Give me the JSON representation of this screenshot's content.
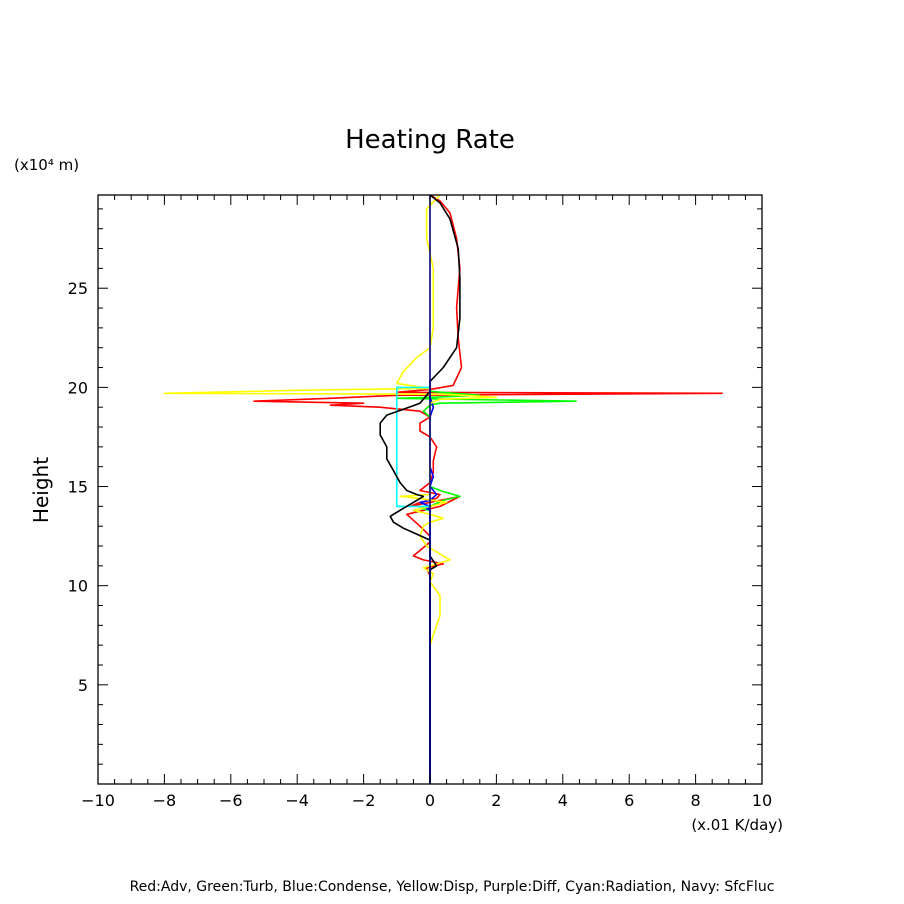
{
  "chart_data": {
    "type": "line",
    "title": "Heating Rate",
    "ylabel": "Height",
    "y_unit": "(x10⁴ m)",
    "x_unit": "(x.01 K/day)",
    "xlim": [
      -10,
      10
    ],
    "ylim": [
      0,
      29.7
    ],
    "x_ticks": [
      "−10",
      "−8",
      "−6",
      "−4",
      "−2",
      "0",
      "2",
      "4",
      "6",
      "8",
      "10"
    ],
    "y_ticks": [
      "5",
      "10",
      "15",
      "20",
      "25"
    ],
    "grid": false,
    "caption": "Red:Adv, Green:Turb, Blue:Condense, Yellow:Disp, Purple:Diff, Cyan:Radiation, Navy: SfcFluc",
    "colors": {
      "Adv": "#ff0000",
      "Turb": "#00ff00",
      "Condense": "#0000ff",
      "Disp": "#ffff00",
      "Diff": "#a020f0",
      "Radiation": "#00ffff",
      "SfcFluc": "#000080",
      "Total": "#000000"
    },
    "series": [
      {
        "key": "Adv",
        "color": "#ff0000",
        "points": [
          [
            0,
            29.7
          ],
          [
            0.3,
            29.4
          ],
          [
            0.6,
            28.8
          ],
          [
            0.8,
            27.5
          ],
          [
            0.9,
            26
          ],
          [
            0.85,
            25
          ],
          [
            0.8,
            24
          ],
          [
            0.85,
            22.5
          ],
          [
            0.95,
            21
          ],
          [
            0.7,
            20.1
          ],
          [
            0,
            19.9
          ],
          [
            -1,
            19.75
          ],
          [
            8.8,
            19.7
          ],
          [
            -1,
            19.6
          ],
          [
            -3,
            19.45
          ],
          [
            -5.3,
            19.3
          ],
          [
            -2,
            19.2
          ],
          [
            -3,
            19.1
          ],
          [
            -1.5,
            19
          ],
          [
            -0.3,
            18.8
          ],
          [
            0,
            18.5
          ],
          [
            -0.3,
            18.2
          ],
          [
            -0.3,
            17.8
          ],
          [
            0,
            17.5
          ],
          [
            0.2,
            17
          ],
          [
            0.1,
            16.3
          ],
          [
            0.1,
            15.7
          ],
          [
            0,
            15.2
          ],
          [
            -0.3,
            14.8
          ],
          [
            0.3,
            14.6
          ],
          [
            0.2,
            14.4
          ],
          [
            -0.3,
            14.2
          ],
          [
            -0.6,
            14
          ],
          [
            0.9,
            14.5
          ],
          [
            0.3,
            14
          ],
          [
            -0.7,
            13.6
          ],
          [
            -0.3,
            13
          ],
          [
            0,
            12.5
          ],
          [
            0,
            12.2
          ],
          [
            -0.5,
            11.5
          ],
          [
            -0.2,
            11.3
          ],
          [
            0.4,
            11.1
          ],
          [
            -0.1,
            10.9
          ],
          [
            0,
            10.5
          ],
          [
            0,
            9
          ]
        ]
      },
      {
        "key": "Turb",
        "color": "#00ff00",
        "points": [
          [
            0,
            20.1
          ],
          [
            0,
            19.8
          ],
          [
            1.5,
            19.6
          ],
          [
            0,
            19.5
          ],
          [
            -1,
            19.45
          ],
          [
            4.4,
            19.3
          ],
          [
            0.3,
            19.2
          ],
          [
            0,
            19.1
          ],
          [
            -0.2,
            18.8
          ],
          [
            0,
            18.5
          ],
          [
            0,
            15
          ],
          [
            0.3,
            14.8
          ],
          [
            0.9,
            14.5
          ],
          [
            0.4,
            14.3
          ],
          [
            0,
            14
          ],
          [
            -0.3,
            13.9
          ],
          [
            0,
            13.8
          ],
          [
            0,
            0
          ]
        ]
      },
      {
        "key": "Condense",
        "color": "#0000ff",
        "points": [
          [
            0,
            20
          ],
          [
            0,
            19.5
          ],
          [
            0.1,
            19
          ],
          [
            0,
            18.5
          ],
          [
            0,
            16
          ],
          [
            0.1,
            15.5
          ],
          [
            0,
            15
          ],
          [
            0.2,
            14.6
          ],
          [
            0,
            14.3
          ],
          [
            -0.3,
            14.2
          ],
          [
            0,
            14
          ],
          [
            -0.1,
            13.9
          ],
          [
            0,
            13.8
          ],
          [
            0,
            0
          ]
        ]
      },
      {
        "key": "Disp",
        "color": "#ffff00",
        "points": [
          [
            0.3,
            29.7
          ],
          [
            -0.1,
            29
          ],
          [
            -0.1,
            27.5
          ],
          [
            0.1,
            26
          ],
          [
            0.1,
            24
          ],
          [
            0.1,
            23
          ],
          [
            0,
            22
          ],
          [
            -0.4,
            21.5
          ],
          [
            -0.8,
            20.8
          ],
          [
            -1,
            20.2
          ],
          [
            0,
            19.95
          ],
          [
            -4,
            19.85
          ],
          [
            -8,
            19.7
          ],
          [
            0.5,
            19.65
          ],
          [
            2,
            19.5
          ],
          [
            0.3,
            19.4
          ],
          [
            0,
            19.2
          ],
          [
            0,
            14.6
          ],
          [
            -0.9,
            14.5
          ],
          [
            -0.3,
            14.4
          ],
          [
            0.5,
            14.2
          ],
          [
            0,
            14
          ],
          [
            -0.5,
            13.8
          ],
          [
            0,
            13.6
          ],
          [
            0.4,
            13.4
          ],
          [
            0,
            13.2
          ],
          [
            -0.2,
            13
          ],
          [
            -0.3,
            12.5
          ],
          [
            -0.1,
            12
          ],
          [
            0.3,
            11.6
          ],
          [
            0.6,
            11.3
          ],
          [
            0.2,
            11.1
          ],
          [
            -0.2,
            10.9
          ],
          [
            0.1,
            10.6
          ],
          [
            0,
            10.2
          ],
          [
            0.3,
            9.5
          ],
          [
            0.3,
            8.5
          ],
          [
            0.1,
            7.5
          ],
          [
            0,
            7
          ]
        ]
      },
      {
        "key": "Diff",
        "color": "#a020f0",
        "points": [
          [
            0,
            29.7
          ],
          [
            0,
            29.5
          ]
        ]
      },
      {
        "key": "Radiation",
        "color": "#00ffff",
        "points": [
          [
            0,
            20
          ],
          [
            -1,
            20
          ],
          [
            -1,
            14
          ],
          [
            0,
            14
          ]
        ]
      },
      {
        "key": "Total",
        "color": "#000000",
        "points": [
          [
            0,
            29.7
          ],
          [
            0.3,
            29.3
          ],
          [
            0.6,
            28.5
          ],
          [
            0.85,
            27
          ],
          [
            0.9,
            25.5
          ],
          [
            0.9,
            23.5
          ],
          [
            0.8,
            22
          ],
          [
            0.4,
            21
          ],
          [
            0,
            20.3
          ],
          [
            0,
            19.8
          ],
          [
            -0.3,
            19.2
          ],
          [
            -0.8,
            18.9
          ],
          [
            -1.3,
            18.6
          ],
          [
            -1.5,
            18.2
          ],
          [
            -1.5,
            17.6
          ],
          [
            -1.3,
            17
          ],
          [
            -1.3,
            16.4
          ],
          [
            -1.1,
            15.8
          ],
          [
            -0.9,
            15.2
          ],
          [
            -0.7,
            14.8
          ],
          [
            -0.4,
            14.6
          ],
          [
            -0.2,
            14.5
          ],
          [
            -0.5,
            14.2
          ],
          [
            -0.8,
            13.9
          ],
          [
            -1.2,
            13.5
          ],
          [
            -1.1,
            13.2
          ],
          [
            -0.8,
            12.9
          ],
          [
            -0.4,
            12.6
          ],
          [
            0,
            12.3
          ],
          [
            0,
            11.5
          ],
          [
            0.2,
            11
          ],
          [
            0,
            10.8
          ],
          [
            0,
            0
          ]
        ]
      },
      {
        "key": "SfcFluc",
        "color": "#000080",
        "points": [
          [
            0,
            0
          ],
          [
            0,
            29.7
          ]
        ]
      }
    ]
  }
}
